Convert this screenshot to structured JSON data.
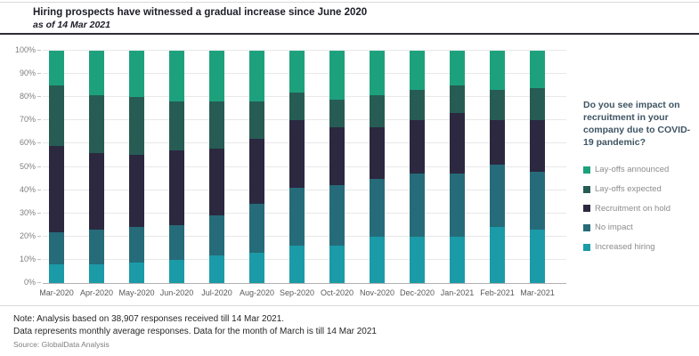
{
  "header": {
    "title": "Hiring prospects have witnessed a gradual increase since June 2020",
    "subtitle": "as of 14 Mar 2021"
  },
  "legend": {
    "question": "Do you see impact on recruitment in your company due to COVID-19 pandemic?",
    "items": [
      {
        "label": "Lay-offs announced",
        "color": "#1da17c"
      },
      {
        "label": "Lay-offs expected",
        "color": "#265c54"
      },
      {
        "label": "Recruitment on hold",
        "color": "#2b2840"
      },
      {
        "label": "No impact",
        "color": "#266b79"
      },
      {
        "label": "Increased hiring",
        "color": "#1a9ba7"
      }
    ]
  },
  "chart_data": {
    "type": "bar",
    "stacked": true,
    "stack_order": "bottom-to-top",
    "unit": "%",
    "categories": [
      "Mar-2020",
      "Apr-2020",
      "May-2020",
      "Jun-2020",
      "Jul-2020",
      "Aug-2020",
      "Sep-2020",
      "Oct-2020",
      "Nov-2020",
      "Dec-2020",
      "Jan-2021",
      "Feb-2021",
      "Mar-2021"
    ],
    "series": [
      {
        "name": "Increased hiring",
        "color": "#1a9ba7",
        "values": [
          8,
          8,
          9,
          10,
          12,
          13,
          16,
          16,
          20,
          20,
          20,
          24,
          23
        ]
      },
      {
        "name": "No impact",
        "color": "#266b79",
        "values": [
          14,
          15,
          15,
          15,
          17,
          21,
          25,
          26,
          25,
          27,
          27,
          27,
          25
        ]
      },
      {
        "name": "Recruitment on hold",
        "color": "#2b2840",
        "values": [
          37,
          33,
          31,
          32,
          29,
          28,
          29,
          25,
          22,
          23,
          26,
          19,
          22
        ]
      },
      {
        "name": "Lay-offs expected",
        "color": "#265c54",
        "values": [
          26,
          25,
          25,
          21,
          20,
          16,
          12,
          12,
          14,
          13,
          12,
          13,
          14
        ]
      },
      {
        "name": "Lay-offs announced",
        "color": "#1da17c",
        "values": [
          15,
          19,
          20,
          22,
          22,
          22,
          18,
          21,
          19,
          17,
          15,
          17,
          16
        ]
      }
    ],
    "y_ticks": [
      "0%",
      "10%",
      "20%",
      "30%",
      "40%",
      "50%",
      "60%",
      "70%",
      "80%",
      "90%",
      "100%"
    ],
    "ylim": [
      0,
      100
    ],
    "grid": true,
    "legend_position": "right",
    "title": "Hiring prospects have witnessed a gradual increase since June 2020"
  },
  "notes": {
    "line1": "Note: Analysis based on 38,907 responses received till 14 Mar 2021.",
    "line2": "Data represents monthly average responses. Data for the month of March is till 14 Mar 2021",
    "source": "Source: GlobalData Analysis"
  }
}
